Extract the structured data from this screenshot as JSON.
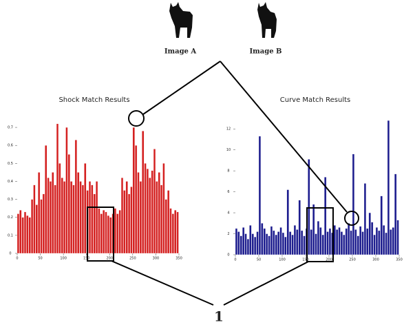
{
  "images": [
    "Image A",
    "Image B"
  ],
  "callout": "1",
  "chart_data": [
    {
      "type": "bar",
      "title": "Shock Match Results",
      "color": "#d42020",
      "x": [
        0,
        5,
        10,
        15,
        20,
        25,
        30,
        35,
        40,
        45,
        50,
        55,
        60,
        65,
        70,
        75,
        80,
        85,
        90,
        95,
        100,
        105,
        110,
        115,
        120,
        125,
        130,
        135,
        140,
        145,
        150,
        155,
        160,
        165,
        170,
        175,
        180,
        185,
        190,
        195,
        200,
        205,
        210,
        215,
        220,
        225,
        230,
        235,
        240,
        245,
        250,
        255,
        260,
        265,
        270,
        275,
        280,
        285,
        290,
        295,
        300,
        305,
        310,
        315,
        320,
        325,
        330,
        335,
        340,
        345
      ],
      "values": [
        0.22,
        0.24,
        0.2,
        0.23,
        0.21,
        0.2,
        0.3,
        0.38,
        0.27,
        0.45,
        0.3,
        0.33,
        0.6,
        0.42,
        0.4,
        0.45,
        0.38,
        0.72,
        0.5,
        0.42,
        0.4,
        0.7,
        0.55,
        0.4,
        0.38,
        0.63,
        0.45,
        0.4,
        0.38,
        0.5,
        0.35,
        0.4,
        0.38,
        0.33,
        0.4,
        0.25,
        0.22,
        0.24,
        0.23,
        0.21,
        0.2,
        0.22,
        0.25,
        0.22,
        0.24,
        0.42,
        0.35,
        0.4,
        0.33,
        0.37,
        0.7,
        0.6,
        0.45,
        0.4,
        0.68,
        0.5,
        0.47,
        0.42,
        0.46,
        0.58,
        0.4,
        0.45,
        0.38,
        0.5,
        0.3,
        0.35,
        0.25,
        0.22,
        0.24,
        0.23
      ],
      "xlim": [
        0,
        350
      ],
      "ylim": [
        0,
        0.75
      ],
      "xticks": [
        0,
        50,
        100,
        150,
        200,
        250,
        300,
        350
      ],
      "yticks": [
        0,
        0.1,
        0.2,
        0.3,
        0.4,
        0.5,
        0.6,
        0.7
      ]
    },
    {
      "type": "bar",
      "title": "Curve Match Results",
      "color": "#1c1c8e",
      "x": [
        0,
        5,
        10,
        15,
        20,
        25,
        30,
        35,
        40,
        45,
        50,
        55,
        60,
        65,
        70,
        75,
        80,
        85,
        90,
        95,
        100,
        105,
        110,
        115,
        120,
        125,
        130,
        135,
        140,
        145,
        150,
        155,
        160,
        165,
        170,
        175,
        180,
        185,
        190,
        195,
        200,
        205,
        210,
        215,
        220,
        225,
        230,
        235,
        240,
        245,
        250,
        255,
        260,
        265,
        270,
        275,
        280,
        285,
        290,
        295,
        300,
        305,
        310,
        315,
        320,
        325,
        330,
        335,
        340,
        345
      ],
      "values": [
        2.5,
        2.2,
        1.8,
        2.6,
        2,
        1.5,
        2.8,
        2,
        1.7,
        2.2,
        11.3,
        3,
        2.5,
        2,
        1.8,
        2.7,
        2.3,
        1.9,
        2.2,
        2.6,
        2.1,
        1.7,
        6.2,
        2.2,
        1.9,
        2.8,
        2.4,
        5.2,
        2.3,
        1.8,
        2.5,
        9.1,
        2.4,
        4.8,
        2,
        3.2,
        2.6,
        1.9,
        7.4,
        2.2,
        2.5,
        2.1,
        2.8,
        2.4,
        2.6,
        2.2,
        1.9,
        2.5,
        3,
        2.3,
        9.6,
        2.4,
        1.8,
        2.7,
        2.2,
        6.8,
        2.5,
        4,
        3.1,
        1.9,
        2.6,
        2.3,
        5.6,
        2.8,
        2.1,
        12.8,
        2.4,
        2.6,
        7.7,
        3.3
      ],
      "xlim": [
        0,
        350
      ],
      "ylim": [
        0,
        13
      ],
      "xticks": [
        0,
        50,
        100,
        150,
        200,
        250,
        300,
        350
      ],
      "yticks": [
        0,
        2,
        4,
        6,
        8,
        10,
        12
      ]
    }
  ]
}
